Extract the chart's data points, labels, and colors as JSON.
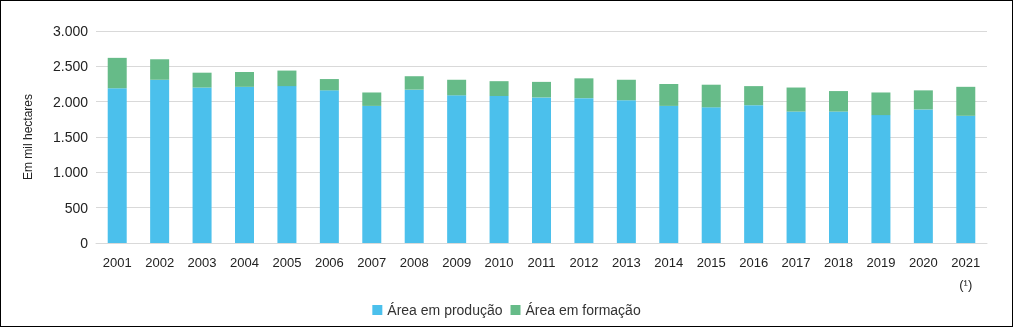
{
  "chart_data": {
    "type": "bar",
    "stacked": true,
    "ylabel": "Em mil hectares",
    "categories": [
      "2001",
      "2002",
      "2003",
      "2004",
      "2005",
      "2006",
      "2007",
      "2008",
      "2009",
      "2010",
      "2011",
      "2012",
      "2013",
      "2014",
      "2015",
      "2016",
      "2017",
      "2018",
      "2019",
      "2020",
      "2021\n(¹)"
    ],
    "series": [
      {
        "name": "Área em produção",
        "color": "#4bc0ec",
        "values": [
          2190,
          2310,
          2200,
          2210,
          2220,
          2160,
          1940,
          2170,
          2090,
          2080,
          2060,
          2050,
          2020,
          1940,
          1920,
          1950,
          1860,
          1860,
          1810,
          1890,
          1800
        ]
      },
      {
        "name": "Área em formação",
        "color": "#66bb88",
        "values": [
          430,
          290,
          210,
          210,
          220,
          160,
          190,
          190,
          220,
          210,
          220,
          280,
          290,
          310,
          320,
          270,
          340,
          290,
          320,
          270,
          410
        ]
      }
    ],
    "ylim": [
      0,
      3000
    ],
    "yticks": [
      0,
      500,
      {
        "value": 1000,
        "label": "1.000"
      },
      {
        "value": 1500,
        "label": "1.500"
      },
      {
        "value": 2000,
        "label": "2.000"
      },
      {
        "value": 2500,
        "label": "2.500"
      },
      {
        "value": 3000,
        "label": "3.000"
      }
    ],
    "grid": "y",
    "legend": "bottom"
  }
}
